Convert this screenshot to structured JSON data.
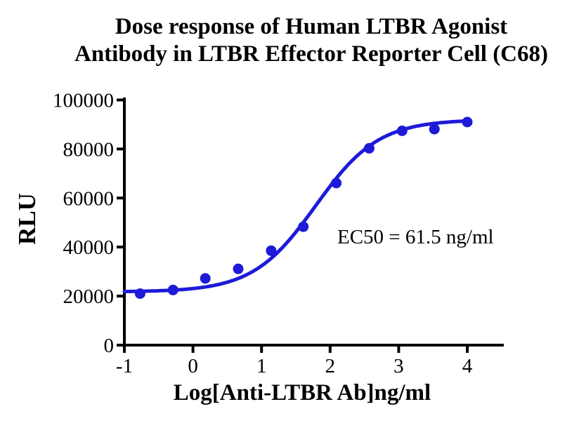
{
  "chart_data": {
    "type": "scatter",
    "title_line1": "Dose response of Human LTBR Agonist",
    "title_line2": "Antibody in LTBR Effector Reporter Cell (C68)",
    "xlabel": "Log[Anti-LTBR Ab]ng/ml",
    "ylabel": "RLU",
    "annotation": "EC50 = 61.5 ng/ml",
    "ec50_ng_ml": 61.5,
    "xlim": [
      -1,
      4.55
    ],
    "ylim": [
      0,
      100000
    ],
    "xticks": [
      -1,
      0,
      1,
      2,
      3,
      4
    ],
    "xtick_labels": [
      "-1",
      "0",
      "1",
      "2",
      "3",
      "4"
    ],
    "yticks": [
      0,
      20000,
      40000,
      60000,
      80000,
      100000
    ],
    "ytick_labels": [
      "0",
      "20000",
      "40000",
      "60000",
      "80000",
      "100000"
    ],
    "grid": false,
    "legend": "none",
    "points": [
      [
        -0.77,
        21000
      ],
      [
        -0.29,
        22500
      ],
      [
        0.18,
        27200
      ],
      [
        0.66,
        31100
      ],
      [
        1.14,
        38500
      ],
      [
        1.61,
        48300
      ],
      [
        2.09,
        66100
      ],
      [
        2.57,
        80300
      ],
      [
        3.05,
        87400
      ],
      [
        3.52,
        88100
      ],
      [
        4.0,
        91000
      ]
    ],
    "fit": {
      "model": "4PL-sigmoid",
      "bottom": 21700,
      "top": 92000,
      "logEC50": 1.789,
      "hill": 0.95,
      "curve_x_range": [
        -1,
        4.0
      ]
    },
    "curve_color": "#1d1ad8",
    "point_color": "#1d1ad8",
    "axis_color": "#000000",
    "text_color": "#000000"
  }
}
